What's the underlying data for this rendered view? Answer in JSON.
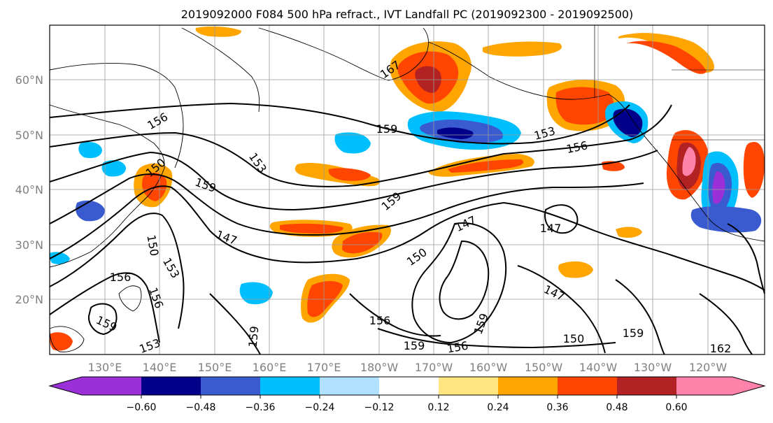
{
  "title": "2019092000 F084 500 hPa refract., IVT Landfall PC (2019092300 - 2019092500)",
  "lat_labels": [
    "60°N",
    "50°N",
    "40°N",
    "30°N",
    "20°N"
  ],
  "lon_labels": [
    "130°E",
    "140°E",
    "150°E",
    "160°E",
    "170°E",
    "180°W",
    "170°W",
    "160°W",
    "150°W",
    "140°W",
    "130°W",
    "120°W"
  ],
  "contour_labels": [
    "167",
    "156",
    "159",
    "153",
    "156",
    "150",
    "159",
    "153",
    "159",
    "147",
    "147",
    "150",
    "147",
    "147",
    "156",
    "153",
    "156",
    "159",
    "150",
    "156",
    "159",
    "156",
    "159",
    "150",
    "159",
    "162",
    "153",
    "159"
  ],
  "colorbar": {
    "tick_labels": [
      "−0.60",
      "−0.48",
      "−0.36",
      "−0.24",
      "−0.12",
      "0.12",
      "0.24",
      "0.36",
      "0.48",
      "0.60"
    ],
    "colors": {
      "neg_extend": "#9b30d9",
      "neg_060": "#00008b",
      "neg_048": "#3a5bd0",
      "neg_036": "#00bfff",
      "neg_024": "#b0e2ff",
      "zero": "#ffffff",
      "pos_012": "#ffe680",
      "pos_024": "#ffa500",
      "pos_036": "#ff4500",
      "pos_048": "#b22222",
      "pos_extend": "#ff82ab"
    }
  }
}
